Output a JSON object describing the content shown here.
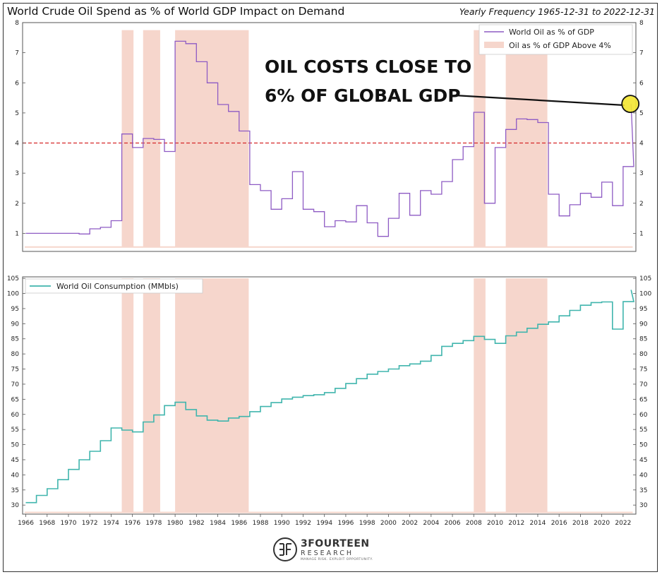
{
  "title": "World Crude Oil Spend as % of World GDP Impact on Demand",
  "subtitle": "Yearly Frequency 1965-12-31 to 2022-12-31",
  "annotation": [
    "OIL COSTS CLOSE TO",
    "6% OF GLOBAL GDP"
  ],
  "logo": {
    "name": "3FOURTEEN",
    "sub": "RESEARCH",
    "tagline": "MANAGE RISK. EXPLOIT OPPORTUNITY."
  },
  "colors": {
    "oil_gdp_line": "#8e5bc4",
    "consumption_line": "#40b5ad",
    "shade": "#f6d6cc",
    "threshold": "#d62728",
    "highlight": "#f3e630"
  },
  "chart_data": [
    {
      "type": "line",
      "series": [
        {
          "name": "World Oil as % of GDP",
          "x": [
            1966,
            1967,
            1968,
            1969,
            1970,
            1971,
            1972,
            1973,
            1974,
            1975,
            1976,
            1977,
            1978,
            1979,
            1980,
            1981,
            1982,
            1983,
            1984,
            1985,
            1986,
            1987,
            1988,
            1989,
            1990,
            1991,
            1992,
            1993,
            1994,
            1995,
            1996,
            1997,
            1998,
            1999,
            2000,
            2001,
            2002,
            2003,
            2004,
            2005,
            2006,
            2007,
            2008,
            2009,
            2010,
            2011,
            2012,
            2013,
            2014,
            2015,
            2016,
            2017,
            2018,
            2019,
            2020,
            2021,
            2022
          ],
          "y": [
            1.0,
            1.0,
            1.0,
            1.0,
            1.0,
            0.98,
            1.15,
            1.2,
            1.42,
            4.3,
            3.85,
            4.15,
            4.12,
            3.72,
            7.38,
            7.3,
            6.7,
            6.0,
            5.28,
            5.05,
            4.4,
            2.62,
            2.42,
            1.8,
            2.15,
            3.05,
            1.8,
            1.72,
            1.22,
            1.42,
            1.38,
            1.92,
            1.35,
            0.9,
            1.5,
            2.33,
            1.6,
            2.42,
            2.3,
            2.72,
            3.45,
            3.88,
            5.02,
            2.0,
            3.85,
            4.45,
            4.8,
            4.78,
            4.68,
            2.3,
            1.58,
            1.95,
            2.33,
            2.2,
            2.7,
            1.92,
            3.22
          ],
          "last_point": {
            "x": 2022.75,
            "y": 5.3
          }
        }
      ],
      "threshold": 4,
      "shaded_periods_label": "Oil as % of GDP Above 4%",
      "shaded_periods": [
        [
          1975,
          1976.1
        ],
        [
          1977,
          1978.6
        ],
        [
          1980,
          1986.9
        ],
        [
          2008,
          2009.1
        ],
        [
          2011,
          2014.9
        ]
      ],
      "xlim": [
        1965.7,
        2023.2
      ],
      "ylim": [
        0.4,
        8
      ],
      "yticks": [
        1,
        2,
        3,
        4,
        5,
        6,
        7,
        8
      ],
      "legend": "top-right",
      "grid": false
    },
    {
      "type": "line",
      "series": [
        {
          "name": "World Oil Consumption (MMbls)",
          "x": [
            1966,
            1967,
            1968,
            1969,
            1970,
            1971,
            1972,
            1973,
            1974,
            1975,
            1976,
            1977,
            1978,
            1979,
            1980,
            1981,
            1982,
            1983,
            1984,
            1985,
            1986,
            1987,
            1988,
            1989,
            1990,
            1991,
            1992,
            1993,
            1994,
            1995,
            1996,
            1997,
            1998,
            1999,
            2000,
            2001,
            2002,
            2003,
            2004,
            2005,
            2006,
            2007,
            2008,
            2009,
            2010,
            2011,
            2012,
            2013,
            2014,
            2015,
            2016,
            2017,
            2018,
            2019,
            2020,
            2021,
            2022
          ],
          "y": [
            30.8,
            33.2,
            35.4,
            38.4,
            41.8,
            45.0,
            47.8,
            51.3,
            55.5,
            54.8,
            54.2,
            57.5,
            59.8,
            62.9,
            64.0,
            61.6,
            59.5,
            58.1,
            57.8,
            58.8,
            59.3,
            60.9,
            62.6,
            63.9,
            65.1,
            65.7,
            66.2,
            66.5,
            67.2,
            68.6,
            70.2,
            71.8,
            73.3,
            74.2,
            75.0,
            76.1,
            76.7,
            77.6,
            79.5,
            82.5,
            83.5,
            84.4,
            85.8,
            84.8,
            83.5,
            86.0,
            87.2,
            88.5,
            89.8,
            90.6,
            92.6,
            94.4,
            96.1,
            97.0,
            97.2,
            88.2,
            97.3
          ],
          "last_point": {
            "x": 2022.75,
            "y": 101.2
          }
        }
      ],
      "shaded_periods": [
        [
          1975,
          1976.1
        ],
        [
          1977,
          1978.6
        ],
        [
          1980,
          1986.9
        ],
        [
          2008,
          2009.1
        ],
        [
          2011,
          2014.9
        ]
      ],
      "xlim": [
        1965.7,
        2023.2
      ],
      "ylim": [
        27,
        105.5
      ],
      "yticks": [
        30,
        35,
        40,
        45,
        50,
        55,
        60,
        65,
        70,
        75,
        80,
        85,
        90,
        95,
        100,
        105
      ],
      "xticks": [
        "1966",
        "1968",
        "1970",
        "1972",
        "1974",
        "1976",
        "1978",
        "1980",
        "1982",
        "1984",
        "1986",
        "1988",
        "1990",
        "1992",
        "1994",
        "1996",
        "1998",
        "2000",
        "2002",
        "2004",
        "2006",
        "2008",
        "2010",
        "2012",
        "2014",
        "2016",
        "2018",
        "2020",
        "2022"
      ],
      "legend": "top-left",
      "grid": false
    }
  ]
}
